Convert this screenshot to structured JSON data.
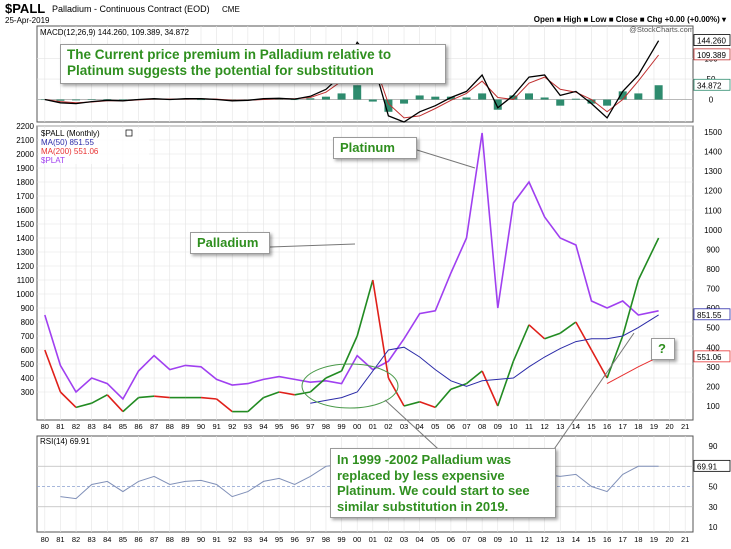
{
  "header": {
    "symbol": "$PALL",
    "description": "Palladium - Continuous Contract (EOD)",
    "exchange": "CME",
    "date": "25-Apr-2019",
    "fields": "Open ■ High ■ Low ■ Close ■ Chg +0.00 (+0.00%) ▾",
    "watermark": "@StockCharts.com"
  },
  "colors": {
    "palladium": "#e0201a",
    "palladium_up": "#228b22",
    "ma50": "#2b2ba8",
    "ma200": "#e83030",
    "platinum": "#a040f0",
    "macd": "#000000",
    "signal": "#c03030",
    "hist": "#2e8b6e",
    "rsi": "#8090b8",
    "callout_text": "#2f8f1f"
  },
  "chart_data": [
    {
      "type": "line",
      "name": "macd-panel",
      "legend": "MACD(12,26,9) 144.260, 109.389, 34.872",
      "x": [
        1980,
        1981,
        1982,
        1983,
        1984,
        1985,
        1986,
        1987,
        1988,
        1989,
        1990,
        1991,
        1992,
        1993,
        1994,
        1995,
        1996,
        1997,
        1998,
        1999,
        2000,
        2001,
        2002,
        2003,
        2004,
        2005,
        2006,
        2007,
        2008,
        2009,
        2010,
        2011,
        2012,
        2013,
        2014,
        2015,
        2016,
        2017,
        2018,
        2019.3
      ],
      "ylim": [
        -55,
        180
      ],
      "yticks": [
        0,
        50,
        100
      ],
      "price_labels": [
        "144.260",
        "109.389",
        "34.872"
      ],
      "series": [
        {
          "name": "MACD",
          "values": [
            0,
            -8,
            -10,
            -5,
            -2,
            -3,
            0,
            2,
            0,
            2,
            2,
            0,
            -3,
            -2,
            2,
            3,
            1,
            8,
            25,
            60,
            140,
            95,
            -40,
            -55,
            -30,
            -15,
            5,
            20,
            60,
            -20,
            10,
            55,
            60,
            10,
            20,
            -10,
            -45,
            20,
            60,
            144
          ]
        },
        {
          "name": "Signal",
          "values": [
            0,
            -5,
            -8,
            -6,
            -3,
            -3,
            -1,
            1,
            1,
            1,
            2,
            1,
            -2,
            -2,
            0,
            2,
            2,
            5,
            18,
            45,
            105,
            100,
            -10,
            -45,
            -40,
            -22,
            -2,
            15,
            45,
            5,
            0,
            40,
            55,
            25,
            18,
            0,
            -30,
            0,
            45,
            109
          ]
        },
        {
          "name": "Histogram",
          "values": [
            0,
            -3,
            -2,
            1,
            1,
            0,
            1,
            1,
            -1,
            1,
            0,
            -1,
            -1,
            0,
            2,
            1,
            -1,
            3,
            7,
            15,
            35,
            -5,
            -30,
            -10,
            10,
            7,
            7,
            5,
            15,
            -25,
            10,
            15,
            5,
            -15,
            2,
            -10,
            -15,
            20,
            15,
            35
          ]
        }
      ]
    },
    {
      "type": "line",
      "name": "price-panel",
      "legend_title": "$PALL (Monthly)",
      "legend_items": [
        "MA(50) 851.55",
        "MA(200) 551.06",
        "$PLAT"
      ],
      "x": [
        1980,
        1981,
        1982,
        1983,
        1984,
        1985,
        1986,
        1987,
        1988,
        1989,
        1990,
        1991,
        1992,
        1993,
        1994,
        1995,
        1996,
        1997,
        1998,
        1999,
        2000,
        2001,
        2002,
        2003,
        2004,
        2005,
        2006,
        2007,
        2008,
        2009,
        2010,
        2011,
        2012,
        2013,
        2014,
        2015,
        2016,
        2017,
        2018,
        2019.3
      ],
      "xlim": [
        1979.5,
        2021.5
      ],
      "xticks": [
        "80",
        "81",
        "82",
        "83",
        "84",
        "85",
        "86",
        "87",
        "88",
        "89",
        "90",
        "91",
        "92",
        "93",
        "94",
        "95",
        "96",
        "97",
        "98",
        "99",
        "00",
        "01",
        "02",
        "03",
        "04",
        "05",
        "06",
        "07",
        "08",
        "09",
        "10",
        "11",
        "12",
        "13",
        "14",
        "15",
        "16",
        "17",
        "18",
        "19",
        "20",
        "21"
      ],
      "ylim_left": [
        100,
        2200
      ],
      "yticks_left": [
        300,
        400,
        500,
        600,
        700,
        800,
        900,
        1000,
        1100,
        1200,
        1300,
        1400,
        1500,
        1600,
        1700,
        1800,
        1900,
        2000,
        2100,
        2200
      ],
      "yticks_right": [
        100,
        200,
        300,
        400,
        500,
        600,
        700,
        800,
        900,
        1000,
        1100,
        1200,
        1300,
        1400,
        1500
      ],
      "price_labels": [
        "851.55",
        "551.06"
      ],
      "series": [
        {
          "name": "Palladium",
          "values": [
            600,
            300,
            190,
            220,
            280,
            160,
            260,
            270,
            260,
            260,
            260,
            250,
            160,
            160,
            260,
            300,
            280,
            300,
            400,
            450,
            700,
            1100,
            400,
            200,
            230,
            190,
            320,
            360,
            450,
            200,
            520,
            780,
            680,
            720,
            800,
            600,
            400,
            700,
            1100,
            1400
          ]
        },
        {
          "name": "MA(50)",
          "values": [
            null,
            null,
            null,
            null,
            null,
            null,
            null,
            null,
            null,
            null,
            null,
            null,
            null,
            null,
            null,
            null,
            null,
            220,
            240,
            260,
            300,
            450,
            600,
            620,
            550,
            460,
            380,
            340,
            380,
            390,
            400,
            480,
            550,
            610,
            660,
            680,
            680,
            700,
            760,
            851
          ]
        },
        {
          "name": "MA(200)",
          "values": [
            null,
            null,
            null,
            null,
            null,
            null,
            null,
            null,
            null,
            null,
            null,
            null,
            null,
            null,
            null,
            null,
            null,
            null,
            null,
            null,
            null,
            null,
            null,
            null,
            null,
            null,
            null,
            null,
            null,
            null,
            null,
            null,
            null,
            null,
            null,
            null,
            360,
            420,
            480,
            551
          ]
        },
        {
          "name": "Platinum",
          "values": [
            850,
            490,
            300,
            400,
            360,
            250,
            450,
            560,
            460,
            490,
            480,
            390,
            350,
            360,
            390,
            410,
            390,
            370,
            380,
            360,
            560,
            460,
            520,
            680,
            860,
            880,
            1150,
            1400,
            2150,
            900,
            1650,
            1800,
            1550,
            1400,
            1350,
            950,
            900,
            950,
            850,
            880
          ]
        }
      ]
    },
    {
      "type": "line",
      "name": "rsi-panel",
      "legend": "RSI(14) 69.91",
      "x": [
        1980,
        1981,
        1982,
        1983,
        1984,
        1985,
        1986,
        1987,
        1988,
        1989,
        1990,
        1991,
        1992,
        1993,
        1994,
        1995,
        1996,
        1997,
        1998,
        1999,
        2000,
        2001,
        2002,
        2003,
        2004,
        2005,
        2006,
        2007,
        2008,
        2009,
        2010,
        2011,
        2012,
        2013,
        2014,
        2015,
        2016,
        2017,
        2018,
        2019.3
      ],
      "ylim": [
        20,
        100
      ],
      "yticks": [
        10,
        30,
        50,
        70,
        90
      ],
      "price_labels": [
        "69.91"
      ],
      "series": [
        {
          "name": "RSI",
          "values": [
            null,
            40,
            38,
            52,
            55,
            45,
            55,
            60,
            52,
            55,
            56,
            52,
            40,
            45,
            55,
            58,
            52,
            60,
            70,
            72,
            80,
            60,
            35,
            30,
            45,
            48,
            55,
            58,
            65,
            40,
            60,
            70,
            62,
            60,
            62,
            50,
            45,
            62,
            70,
            69.91
          ]
        }
      ]
    }
  ],
  "annotations": {
    "top": "The Current price premium in Palladium relative to Platinum suggests the potential for substitution",
    "platinum": "Platinum",
    "palladium": "Palladium",
    "question": "?",
    "bottom": "In 1999 -2002 Palladium was replaced by less expensive Platinum. We could start to see similar substitution in 2019."
  }
}
